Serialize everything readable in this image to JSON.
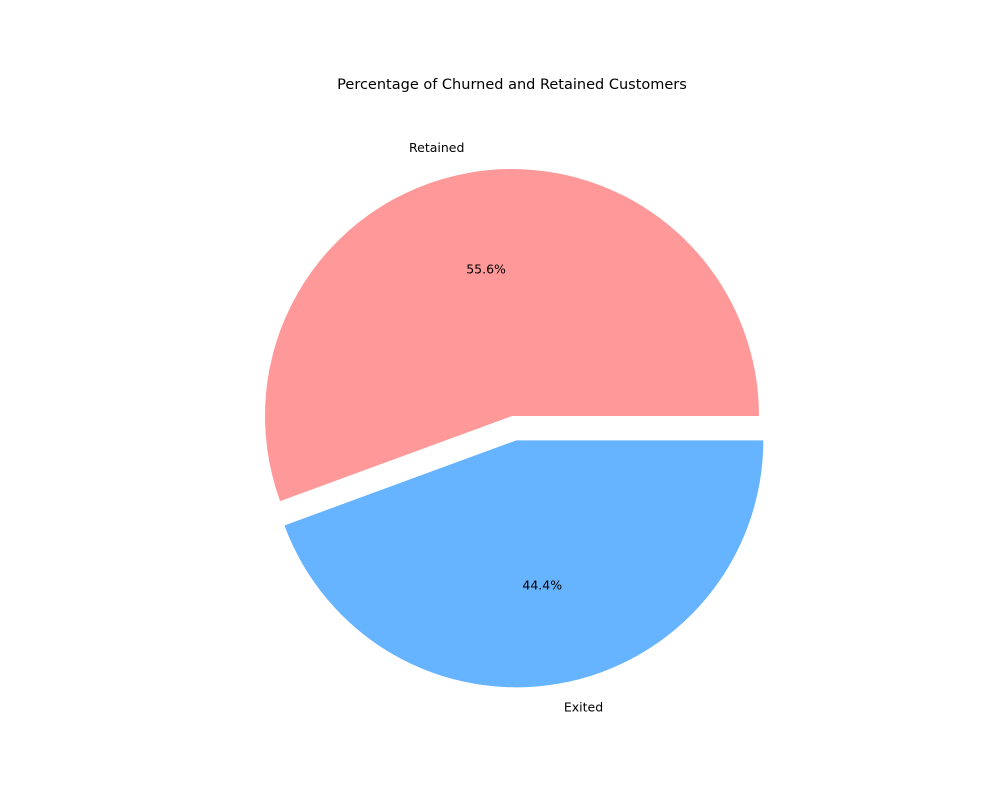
{
  "chart_data": {
    "type": "pie",
    "title": "Percentage of Churned and Retained Customers",
    "slices": [
      {
        "label": "Retained",
        "value": 55.6,
        "pct_label": "55.6%",
        "color": "#ff9999",
        "exploded": false
      },
      {
        "label": "Exited",
        "value": 44.4,
        "pct_label": "44.4%",
        "color": "#66b3ff",
        "exploded": true
      }
    ],
    "start_angle_deg": 0,
    "direction": "counterclockwise",
    "legend": "none"
  }
}
